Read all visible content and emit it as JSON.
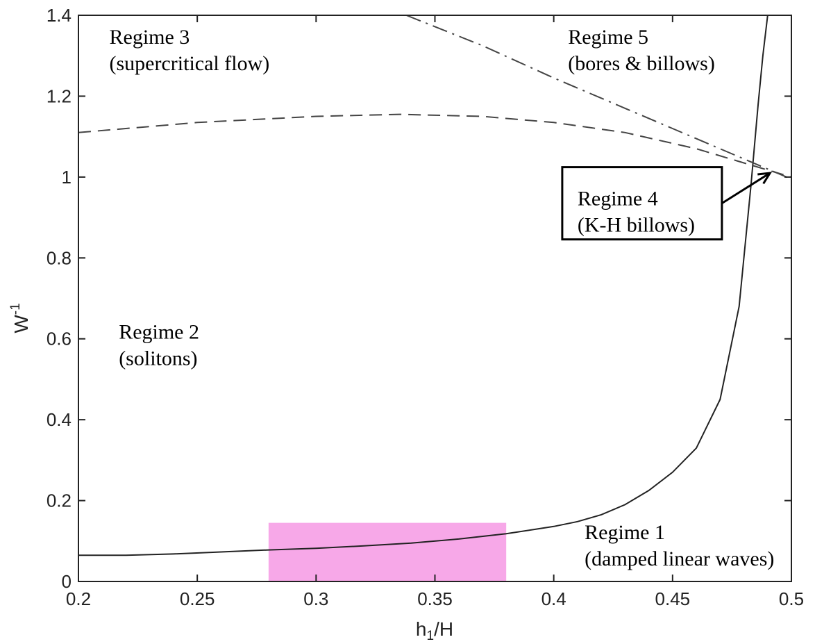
{
  "chart_data": {
    "type": "line",
    "title": "",
    "xlabel": "h1/H",
    "ylabel": "W-1",
    "xlim": [
      0.2,
      0.5
    ],
    "ylim": [
      0,
      1.4
    ],
    "xticks": [
      "0.2",
      "0.25",
      "0.3",
      "0.35",
      "0.4",
      "0.45",
      "0.5"
    ],
    "yticks": [
      "0",
      "0.2",
      "0.4",
      "0.6",
      "0.8",
      "1",
      "1.2",
      "1.4"
    ],
    "grid": false,
    "legend": "none",
    "series": [
      {
        "style": "solid",
        "color": "#222222",
        "x": [
          0.2,
          0.22,
          0.24,
          0.26,
          0.28,
          0.3,
          0.32,
          0.34,
          0.36,
          0.38,
          0.4,
          0.41,
          0.42,
          0.43,
          0.44,
          0.45,
          0.46,
          0.47,
          0.478,
          0.483,
          0.486,
          0.488,
          0.49
        ],
        "y": [
          0.065,
          0.065,
          0.068,
          0.073,
          0.078,
          0.082,
          0.088,
          0.095,
          0.105,
          0.118,
          0.136,
          0.148,
          0.165,
          0.19,
          0.225,
          0.27,
          0.33,
          0.45,
          0.68,
          0.98,
          1.18,
          1.3,
          1.4
        ]
      },
      {
        "style": "dashed",
        "color": "#444444",
        "x": [
          0.2,
          0.25,
          0.3,
          0.335,
          0.37,
          0.4,
          0.43,
          0.46,
          0.48,
          0.5
        ],
        "y": [
          1.11,
          1.135,
          1.15,
          1.155,
          1.15,
          1.135,
          1.11,
          1.07,
          1.035,
          1.0
        ]
      },
      {
        "style": "dashdot",
        "color": "#444444",
        "x": [
          0.338,
          0.37,
          0.4,
          0.43,
          0.46,
          0.48,
          0.5
        ],
        "y": [
          1.4,
          1.325,
          1.245,
          1.17,
          1.095,
          1.045,
          0.995
        ]
      }
    ],
    "highlight": {
      "x": [
        0.28,
        0.38
      ],
      "y": [
        0,
        0.145
      ],
      "color": "#f7a8e8"
    },
    "annotations": [
      {
        "id": "regime3",
        "lines": [
          "Regime 3",
          "(supercritical flow)"
        ],
        "x": 0.213,
        "y": 1.33
      },
      {
        "id": "regime5",
        "lines": [
          "Regime 5",
          "(bores & billows)"
        ],
        "x": 0.406,
        "y": 1.33
      },
      {
        "id": "regime2",
        "lines": [
          "Regime 2",
          "(solitons)"
        ],
        "x": 0.217,
        "y": 0.6
      },
      {
        "id": "regime1",
        "lines": [
          "Regime 1",
          "(damped linear waves)"
        ],
        "x": 0.413,
        "y": 0.105
      },
      {
        "id": "regime4",
        "lines": [
          "Regime 4",
          "(K-H billows)"
        ],
        "x": 0.41,
        "y": 0.93,
        "boxed": true,
        "arrow_to": [
          0.491,
          1.01
        ]
      }
    ]
  }
}
